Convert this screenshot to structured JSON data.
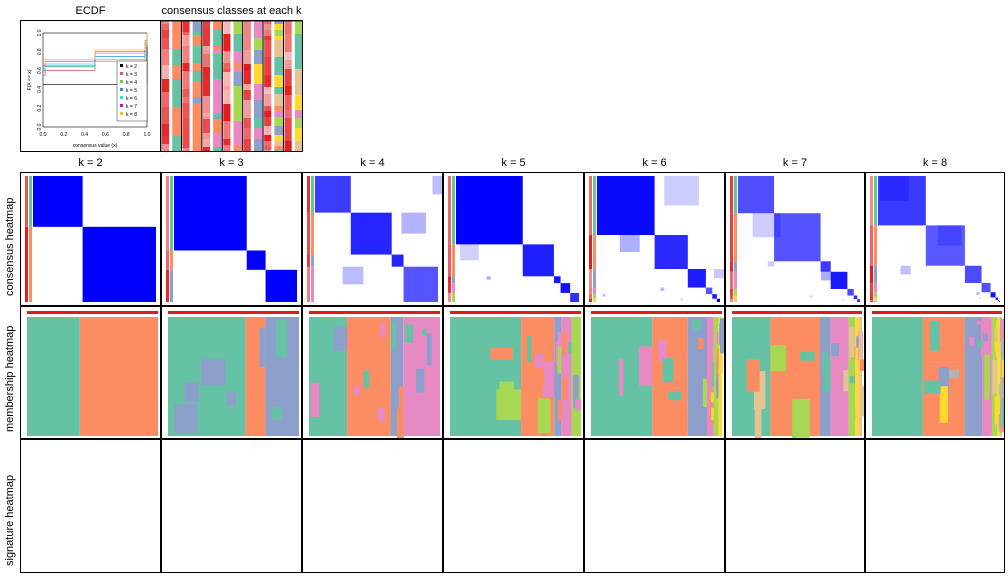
{
  "titles": {
    "ecdf": "ECDF",
    "classes": "consensus classes at each k"
  },
  "row_labels": [
    "consensus heatmap",
    "membership heatmap",
    "signature heatmap"
  ],
  "k_labels": [
    "k = 2",
    "k = 3",
    "k = 4",
    "k = 5",
    "k = 6",
    "k = 7",
    "k = 8"
  ],
  "colors": {
    "consensus": "#0000ff",
    "class_palette": [
      "#66c2a5",
      "#fc8d62",
      "#8da0cb",
      "#e78ac3",
      "#a6d854",
      "#ffd92f",
      "#e5c494",
      "#b3b3b3"
    ],
    "silhouette": "#e31a1c"
  },
  "chart_data": [
    {
      "type": "line",
      "title": "ECDF",
      "xlabel": "consensus value (x)",
      "ylabel": "F(X <= x)",
      "xlim": [
        0,
        1
      ],
      "ylim": [
        0,
        1
      ],
      "xticks": [
        "0.0",
        "0.2",
        "0.4",
        "0.6",
        "0.8",
        "1.0"
      ],
      "yticks": [
        "0.0",
        "0.2",
        "0.4",
        "0.6",
        "0.8",
        "1.0"
      ],
      "legend_position": "bottom-right",
      "series": [
        {
          "name": "k = 2",
          "color": "#000000",
          "x": [
            0,
            0.02,
            0.98,
            1
          ],
          "y": [
            0.45,
            0.45,
            0.45,
            1
          ]
        },
        {
          "name": "k = 3",
          "color": "#df536b",
          "x": [
            0,
            0.02,
            0.5,
            0.98,
            1
          ],
          "y": [
            0.55,
            0.6,
            0.7,
            0.85,
            1
          ]
        },
        {
          "name": "k = 4",
          "color": "#61d04f",
          "x": [
            0,
            0.02,
            0.5,
            0.98,
            1
          ],
          "y": [
            0.6,
            0.64,
            0.72,
            0.88,
            1
          ]
        },
        {
          "name": "k = 5",
          "color": "#2297e6",
          "x": [
            0,
            0.02,
            0.5,
            0.98,
            1
          ],
          "y": [
            0.6,
            0.65,
            0.75,
            0.9,
            1
          ]
        },
        {
          "name": "k = 6",
          "color": "#28e2e5",
          "x": [
            0,
            0.02,
            0.5,
            0.98,
            1
          ],
          "y": [
            0.62,
            0.67,
            0.78,
            0.9,
            1
          ]
        },
        {
          "name": "k = 7",
          "color": "#cd0bbc",
          "x": [
            0,
            0.02,
            0.5,
            0.98,
            1
          ],
          "y": [
            0.65,
            0.7,
            0.8,
            0.92,
            1
          ]
        },
        {
          "name": "k = 8",
          "color": "#f5c710",
          "x": [
            0,
            0.02,
            0.5,
            0.98,
            1
          ],
          "y": [
            0.66,
            0.72,
            0.82,
            0.92,
            1
          ]
        }
      ]
    },
    {
      "type": "heatmap",
      "title": "consensus classes at each k",
      "k": [
        2,
        3,
        4,
        5,
        6,
        7,
        8
      ]
    }
  ]
}
